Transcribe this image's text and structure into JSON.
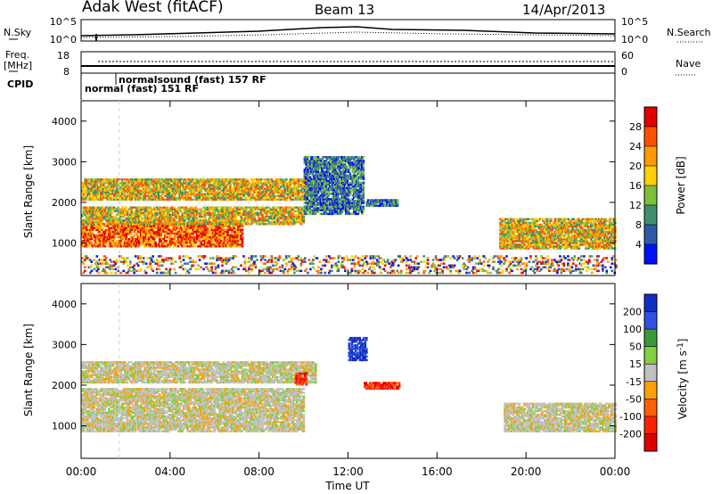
{
  "header": {
    "station": "Adak West (fitACF)",
    "beam": "Beam 13",
    "date": "14/Apr/2013"
  },
  "top_panel": {
    "nsky_label": "N.Sky",
    "nsky_ticks": [
      "10^5",
      "10^0"
    ],
    "nsearch_label": "N.Search",
    "nsearch_ticks": [
      "10^5",
      "10^0"
    ],
    "freq_label_1": "Freq.",
    "freq_label_2": "[MHz]",
    "freq_ticks": [
      "18",
      "8"
    ],
    "nave_label": "Nave",
    "nave_ticks": [
      "60",
      "0"
    ],
    "cpid_label": "CPID",
    "cpid_1": "normal (fast) 151 RF",
    "cpid_2": "normalsound (fast) 157 RF"
  },
  "x_axis": {
    "label": "Time UT",
    "ticks": [
      "00:00",
      "04:00",
      "08:00",
      "12:00",
      "16:00",
      "20:00",
      "00:00"
    ]
  },
  "chart_data": [
    {
      "type": "heatmap",
      "title": "Power",
      "ylabel": "Slant Range [km]",
      "xlabel": "Time UT",
      "x_range_hours": [
        0,
        24
      ],
      "ylim": [
        200,
        4500
      ],
      "yticks": [
        1000,
        2000,
        3000,
        4000
      ],
      "colorbar": {
        "label": "Power [dB]",
        "ticks": [
          "28",
          "24",
          "20",
          "16",
          "12",
          "8",
          "4"
        ],
        "colors": [
          "#e00000",
          "#ff5000",
          "#ff9a00",
          "#ffd000",
          "#7dbf3c",
          "#3e8f6f",
          "#2d5aa8",
          "#0010ff"
        ]
      },
      "regions": [
        {
          "t0": 0.0,
          "t1": 7.2,
          "r0": 900,
          "r1": 1500,
          "level": "strong"
        },
        {
          "t0": 0.0,
          "t1": 10.0,
          "r0": 1450,
          "r1": 1900,
          "level": "medium"
        },
        {
          "t0": 0.0,
          "t1": 10.5,
          "r0": 2050,
          "r1": 2550,
          "level": "medium"
        },
        {
          "t0": 10.0,
          "t1": 12.7,
          "r0": 1700,
          "r1": 3100,
          "level": "weak"
        },
        {
          "t0": 12.8,
          "t1": 14.2,
          "r0": 1900,
          "r1": 2050,
          "level": "weak"
        },
        {
          "t0": 18.8,
          "t1": 24.0,
          "r0": 850,
          "r1": 1600,
          "level": "medium"
        },
        {
          "t0": 0.0,
          "t1": 24.0,
          "r0": 250,
          "r1": 700,
          "level": "scatter"
        }
      ]
    },
    {
      "type": "heatmap",
      "title": "Velocity",
      "ylabel": "Slant Range [km]",
      "xlabel": "Time UT",
      "x_range_hours": [
        0,
        24
      ],
      "ylim": [
        200,
        4500
      ],
      "yticks": [
        1000,
        2000,
        3000,
        4000
      ],
      "colorbar": {
        "label": "Velocity [m s^-1]",
        "ticks": [
          "200",
          "100",
          "50",
          "15",
          "-15",
          "-50",
          "-100",
          "-200"
        ],
        "colors": [
          "#1030c0",
          "#3050e0",
          "#3a9a3a",
          "#80d040",
          "#c0c0c0",
          "#ffa000",
          "#ff6000",
          "#ff2000",
          "#e00000"
        ]
      },
      "regions": [
        {
          "t0": 0.0,
          "t1": 10.0,
          "r0": 850,
          "r1": 1900,
          "level": "grey"
        },
        {
          "t0": 0.0,
          "t1": 10.5,
          "r0": 2050,
          "r1": 2550,
          "level": "grey"
        },
        {
          "t0": 9.6,
          "t1": 10.1,
          "r0": 2000,
          "r1": 2300,
          "level": "red"
        },
        {
          "t0": 12.7,
          "t1": 14.3,
          "r0": 1900,
          "r1": 2050,
          "level": "red"
        },
        {
          "t0": 12.0,
          "t1": 12.8,
          "r0": 2600,
          "r1": 3150,
          "level": "blue"
        },
        {
          "t0": 19.0,
          "t1": 24.0,
          "r0": 850,
          "r1": 1550,
          "level": "grey"
        }
      ]
    }
  ]
}
